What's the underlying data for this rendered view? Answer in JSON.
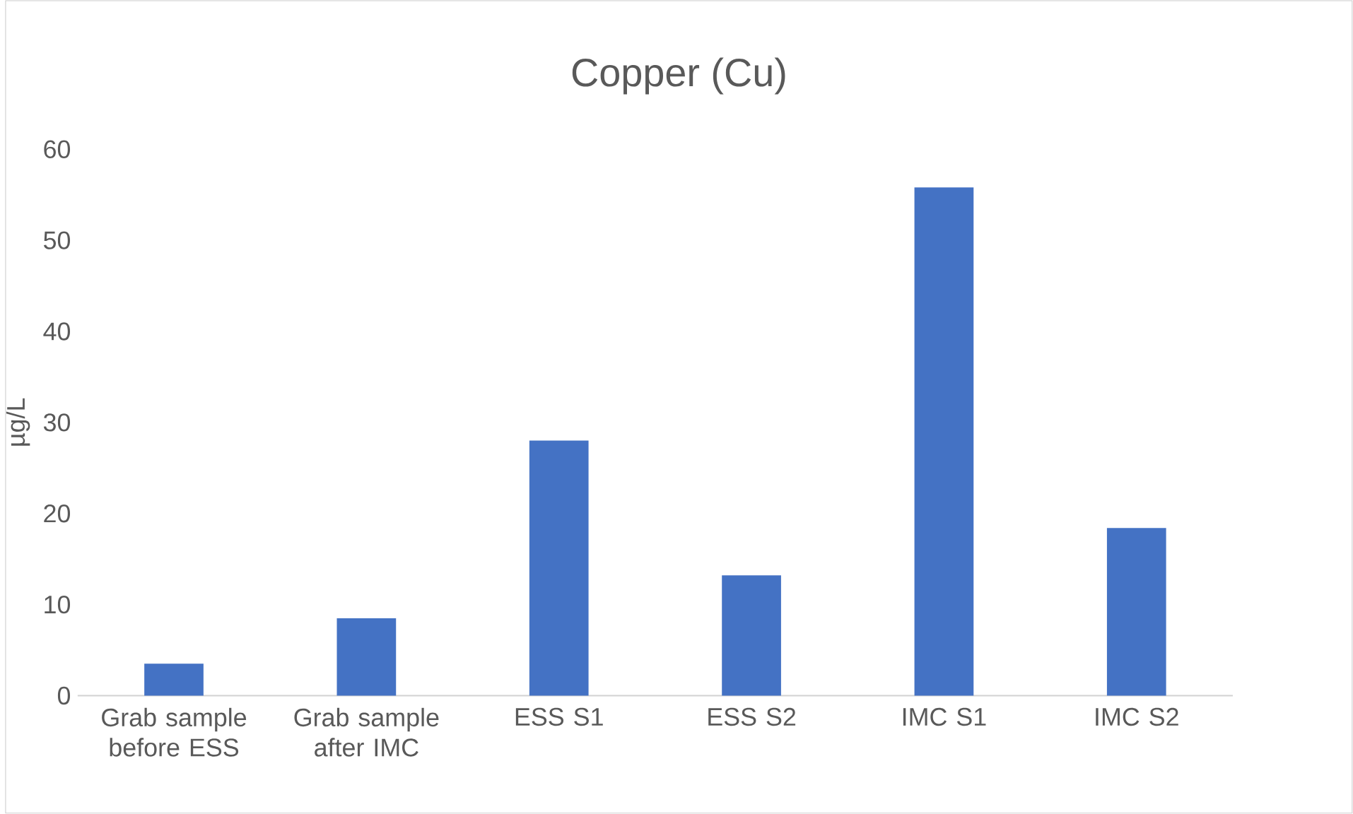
{
  "chart_data": {
    "type": "bar",
    "title": "Copper (Cu)",
    "ylabel": "µg/L",
    "categories": [
      "Grab sample before ESS",
      "Grab sample after IMC",
      "ESS S1",
      "ESS S2",
      "IMC S1",
      "IMC S2"
    ],
    "values": [
      3.5,
      8.5,
      28.0,
      13.2,
      55.8,
      18.4
    ],
    "color": "#4472c4",
    "ylim": [
      0,
      60
    ],
    "yticks": [
      0,
      10,
      20,
      30,
      40,
      50,
      60
    ]
  }
}
